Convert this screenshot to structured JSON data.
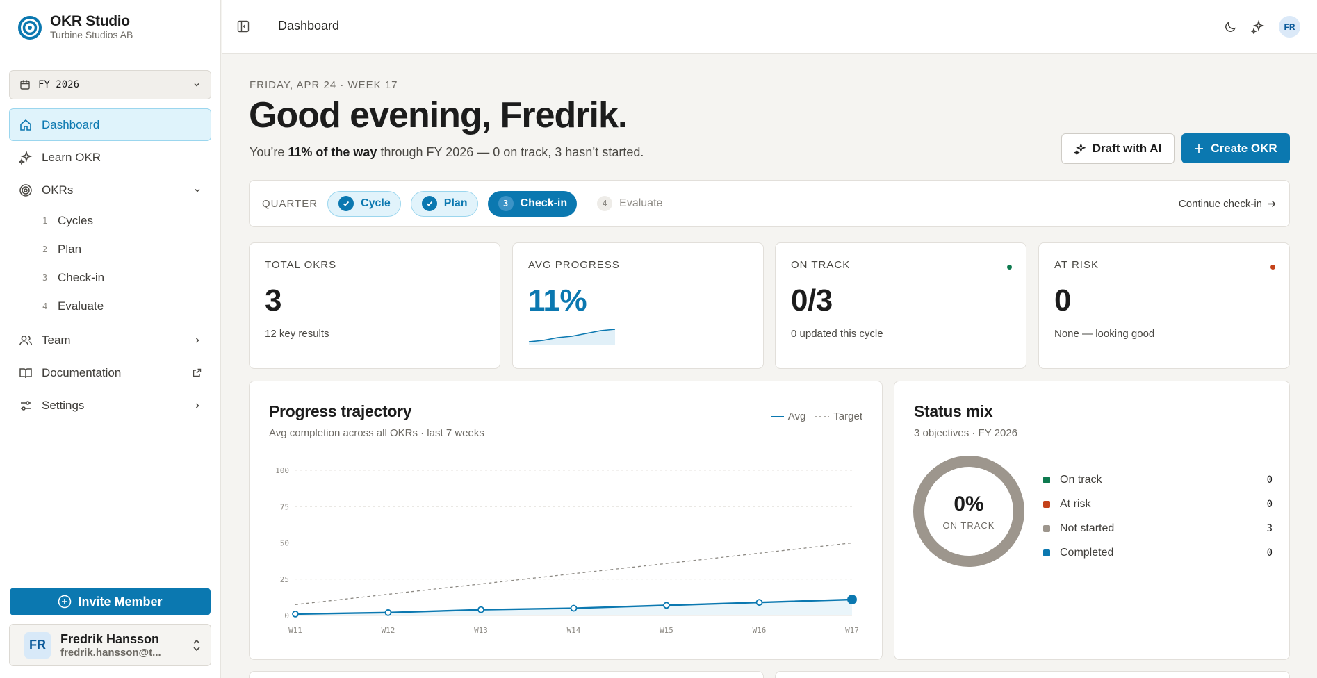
{
  "app": {
    "name": "OKR Studio",
    "org": "Turbine Studios AB",
    "brand_color": "#0b78b0"
  },
  "sidebar": {
    "fy_select": "FY 2026",
    "items": [
      {
        "label": "Dashboard",
        "icon": "home-icon",
        "active": true
      },
      {
        "label": "Learn OKR",
        "icon": "sparkles-icon"
      },
      {
        "label": "OKRs",
        "icon": "target-icon"
      },
      {
        "label": "Team",
        "icon": "users-icon"
      },
      {
        "label": "Documentation",
        "icon": "book-icon"
      },
      {
        "label": "Settings",
        "icon": "sliders-icon"
      }
    ],
    "okr_sub": [
      {
        "num": "1",
        "label": "Cycles"
      },
      {
        "num": "2",
        "label": "Plan"
      },
      {
        "num": "3",
        "label": "Check-in"
      },
      {
        "num": "4",
        "label": "Evaluate"
      }
    ],
    "invite_label": "Invite Member",
    "user": {
      "initials": "FR",
      "name": "Fredrik Hansson",
      "email": "fredrik.hansson@t..."
    }
  },
  "topbar": {
    "breadcrumb": "Dashboard",
    "avatar_initials": "FR"
  },
  "header": {
    "date_line": "FRIDAY, APR 24 · WEEK 17",
    "greeting": "Good evening, Fredrik.",
    "sub_prefix": "You’re ",
    "sub_bold": "11% of the way",
    "sub_suffix": " through FY 2026 — 0 on track, 3 hasn’t started.",
    "draft_label": "Draft with AI",
    "create_label": "Create OKR"
  },
  "quarter": {
    "label": "QUARTER",
    "steps": [
      {
        "num": "1",
        "label": "Cycle",
        "state": "done"
      },
      {
        "num": "2",
        "label": "Plan",
        "state": "done"
      },
      {
        "num": "3",
        "label": "Check-in",
        "state": "current"
      },
      {
        "num": "4",
        "label": "Evaluate",
        "state": "todo"
      }
    ],
    "continue_label": "Continue check-in"
  },
  "stats": [
    {
      "label": "TOTAL OKRS",
      "value": "3",
      "foot": "12 key results"
    },
    {
      "label": "AVG PROGRESS",
      "value": "11%",
      "foot": "",
      "sparkline": [
        2,
        3,
        5,
        6,
        8,
        10,
        11
      ]
    },
    {
      "label": "ON TRACK",
      "value": "0/3",
      "foot": "0 updated this cycle",
      "dot": "#0e7a4f"
    },
    {
      "label": "AT RISK",
      "value": "0",
      "foot": "None — looking good",
      "dot": "#c4421a"
    }
  ],
  "trajectory": {
    "title": "Progress trajectory",
    "subtitle": "Avg completion across all OKRs · last 7 weeks",
    "legend_avg": "Avg",
    "legend_target": "Target"
  },
  "chart_data": {
    "type": "line",
    "x": [
      "W11",
      "W12",
      "W13",
      "W14",
      "W15",
      "W16",
      "W17"
    ],
    "series": [
      {
        "name": "Avg",
        "values": [
          1,
          2,
          4,
          5,
          7,
          9,
          11
        ]
      },
      {
        "name": "Target",
        "values": [
          7.5,
          14.6,
          21.7,
          28.8,
          35.8,
          42.9,
          50
        ]
      }
    ],
    "yticks": [
      0,
      25,
      50,
      75,
      100
    ],
    "ylim": [
      0,
      100
    ],
    "grid": true,
    "legend": "top-right"
  },
  "status_mix": {
    "title": "Status mix",
    "subtitle": "3 objectives · FY 2026",
    "center_value": "0%",
    "center_label": "ON TRACK",
    "rows": [
      {
        "label": "On track",
        "count": "0",
        "color": "#0e7a4f"
      },
      {
        "label": "At risk",
        "count": "0",
        "color": "#c4421a"
      },
      {
        "label": "Not started",
        "count": "3",
        "color": "#9d968d"
      },
      {
        "label": "Completed",
        "count": "0",
        "color": "#0b78b0"
      }
    ]
  }
}
